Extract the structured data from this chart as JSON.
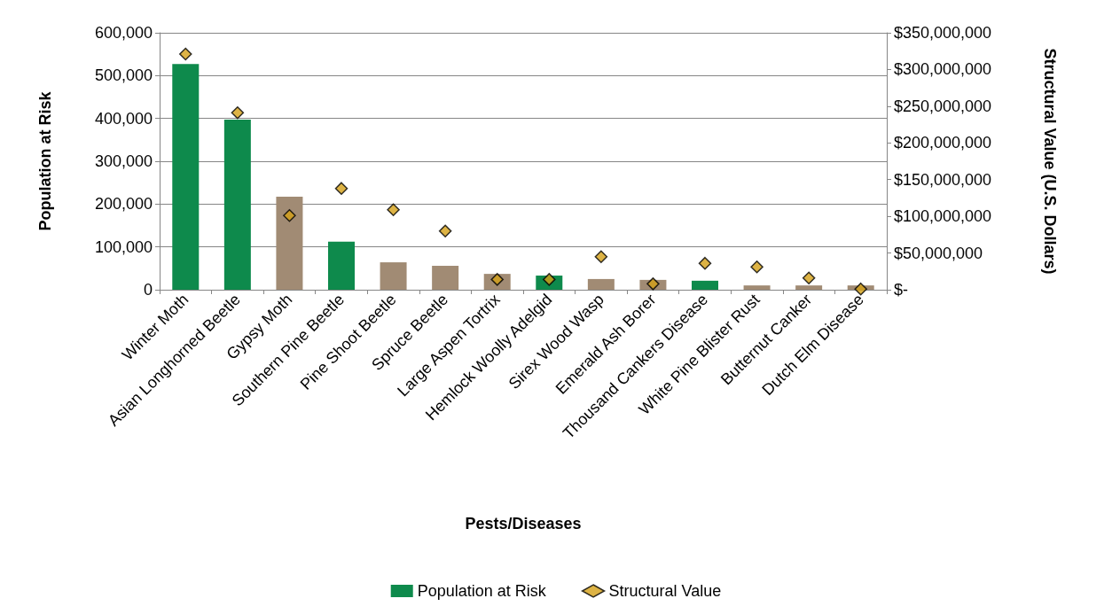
{
  "chart_data": {
    "type": "bar",
    "xlabel": "Pests/Diseases",
    "ylabel": "Population at Risk",
    "y2label": "Structural Value (U.S. Dollars)",
    "categories": [
      "Winter Moth",
      "Asian Longhorned Beetle",
      "Gypsy Moth",
      "Southern Pine Beetle",
      "Pine Shoot Beetle",
      "Spruce Beetle",
      "Large Aspen Tortrix",
      "Hemlock Woolly Adelgid",
      "Sirex Wood Wasp",
      "Emerald Ash Borer",
      "Thousand Cankers Disease",
      "White Pine Blister Rust",
      "Butternut Canker",
      "Dutch Elm Disease"
    ],
    "series": [
      {
        "name": "Population at Risk",
        "color": "#0e8a4c",
        "colors": [
          "#0e8a4c",
          "#0e8a4c",
          "#a18b74",
          "#0e8a4c",
          "#a18b74",
          "#a18b74",
          "#a18b74",
          "#0e8a4c",
          "#a18b74",
          "#a18b74",
          "#0e8a4c",
          "#a18b74",
          "#a18b74",
          "#a18b74"
        ],
        "values": [
          527000,
          397000,
          217000,
          112000,
          64000,
          56000,
          37000,
          33000,
          25000,
          23000,
          21000,
          10000,
          10000,
          10000
        ]
      },
      {
        "name": "Structural Value",
        "type": "scatter",
        "axis": "y2",
        "color": "#d4a017",
        "marker": "diamond",
        "values": [
          321000000,
          241000000,
          101000000,
          138000000,
          109000000,
          80000000,
          14000000,
          14000000,
          45000000,
          8000000,
          36000000,
          31000000,
          16000000,
          1000000
        ]
      }
    ],
    "ylim": [
      0,
      600000
    ],
    "yticks": [
      {
        "value": 0,
        "label": "0"
      },
      {
        "value": 100000,
        "label": "100,000"
      },
      {
        "value": 200000,
        "label": "200,000"
      },
      {
        "value": 300000,
        "label": "300,000"
      },
      {
        "value": 400000,
        "label": "400,000"
      },
      {
        "value": 500000,
        "label": "500,000"
      },
      {
        "value": 600000,
        "label": "600,000"
      }
    ],
    "y2lim": [
      0,
      350000000
    ],
    "y2ticks": [
      {
        "value": 0,
        "label": "$-"
      },
      {
        "value": 50000000,
        "label": "$50,000,000"
      },
      {
        "value": 100000000,
        "label": "$100,000,000"
      },
      {
        "value": 150000000,
        "label": "$150,000,000"
      },
      {
        "value": 200000000,
        "label": "$200,000,000"
      },
      {
        "value": 250000000,
        "label": "$250,000,000"
      },
      {
        "value": 300000000,
        "label": "$300,000,000"
      },
      {
        "value": 350000000,
        "label": "$350,000,000"
      }
    ],
    "grid": "y",
    "legend": "bottom"
  }
}
